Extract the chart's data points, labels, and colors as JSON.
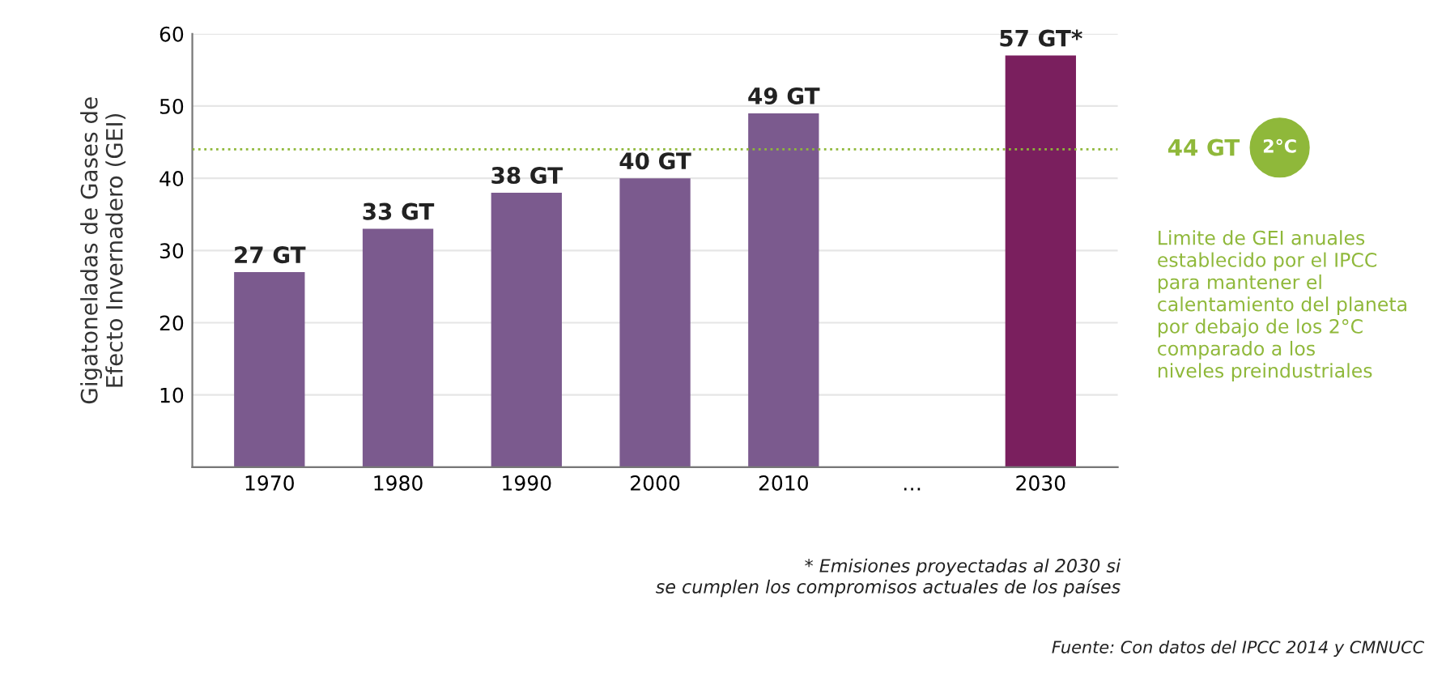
{
  "chart_data": {
    "type": "bar",
    "ylabel": "Gigatoneladas de Gases de\nEfecto Invernadero (GEI)",
    "categories": [
      "1970",
      "1980",
      "1990",
      "2000",
      "2010",
      "…",
      "2030"
    ],
    "values": [
      27,
      33,
      38,
      40,
      49,
      null,
      57
    ],
    "value_labels": [
      "27 GT",
      "33 GT",
      "38 GT",
      "40 GT",
      "49 GT",
      null,
      "57 GT*"
    ],
    "colors": [
      "#7b5a8e",
      "#7b5a8e",
      "#7b5a8e",
      "#7b5a8e",
      "#7b5a8e",
      null,
      "#7a1f5e"
    ],
    "ylim": [
      0,
      60
    ],
    "yticks": [
      {
        "value": 0,
        "label": null
      },
      10,
      20,
      30,
      40,
      50,
      60
    ],
    "grid": "y",
    "ref_lines": [
      {
        "axis": "y",
        "value": 44,
        "label": "44 GT",
        "color": "#8fb83a",
        "line_style": "dotted"
      }
    ],
    "annotations": [
      "2°C",
      "Limite de GEI anuales\nestablecido por el IPCC\npara mantener el\ncalentamiento del planeta\npor debajo de los 2°C\ncomparado a los\nniveles preindustriales",
      "* Emisiones proyectadas al 2030 si\nse cumplen los compromisos actuales de los países",
      "Fuente: Con datos del IPCC 2014 y CMNUCC"
    ]
  }
}
